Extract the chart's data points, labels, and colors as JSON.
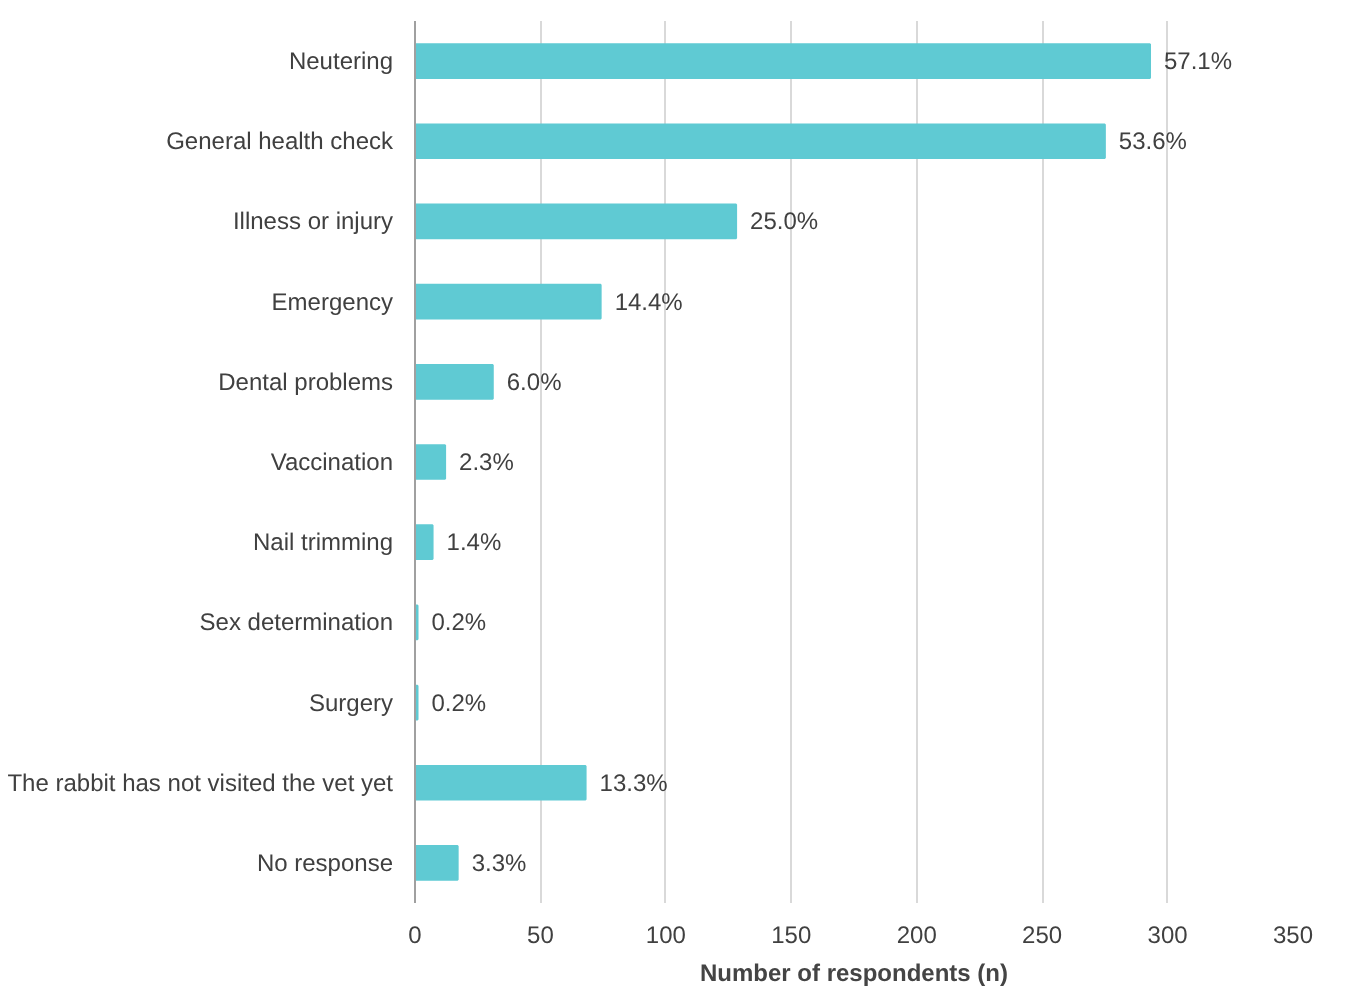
{
  "chart_data": {
    "type": "bar",
    "orientation": "horizontal",
    "xlabel": "Number of respondents (n)",
    "categories": [
      "Neutering",
      "General health check",
      "Illness or injury",
      "Emergency",
      "Dental problems",
      "Vaccination",
      "Nail trimming",
      "Sex determination",
      "Surgery",
      "The rabbit has not visited the vet yet",
      "No response"
    ],
    "values": [
      293,
      275,
      128,
      74,
      31,
      12,
      7,
      1,
      1,
      68,
      17
    ],
    "annotations": [
      {
        "text": "57.1%",
        "x": 293,
        "y": "Neutering"
      },
      {
        "text": "53.6%",
        "x": 275,
        "y": "General health check"
      },
      {
        "text": "25.0%",
        "x": 128,
        "y": "Illness or injury"
      },
      {
        "text": "14.4%",
        "x": 74,
        "y": "Emergency"
      },
      {
        "text": "6.0%",
        "x": 31,
        "y": "Dental problems"
      },
      {
        "text": "2.3%",
        "x": 12,
        "y": "Vaccination"
      },
      {
        "text": "1.4%",
        "x": 7,
        "y": "Nail trimming"
      },
      {
        "text": "0.2%",
        "x": 1,
        "y": "Sex determination"
      },
      {
        "text": "0.2%",
        "x": 1,
        "y": "Surgery"
      },
      {
        "text": "13.3%",
        "x": 68,
        "y": "The rabbit has not visited the vet yet"
      },
      {
        "text": "3.3%",
        "x": 17,
        "y": "No response"
      }
    ],
    "color": "#5fcad3",
    "xlim": [
      0,
      350
    ],
    "xticks": [
      0,
      50,
      100,
      150,
      200,
      250,
      300,
      350
    ],
    "grid": "x"
  }
}
